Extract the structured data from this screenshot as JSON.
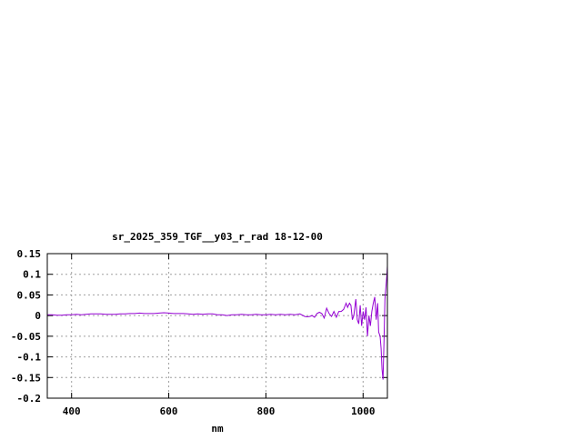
{
  "chart_data": {
    "type": "line",
    "title": "sr_2025_359_TGF__y03_r_rad 18-12-00",
    "xlabel": "nm",
    "ylabel": "",
    "xlim": [
      350,
      1050
    ],
    "ylim": [
      -0.2,
      0.15
    ],
    "xticks": [
      400,
      600,
      800,
      1000
    ],
    "xtick_labels": [
      "400",
      "600",
      "800",
      "1000"
    ],
    "yticks": [
      0.15,
      0.1,
      0.05,
      0,
      -0.05,
      -0.1,
      -0.15,
      -0.2
    ],
    "ytick_labels": [
      "0.15",
      "0.1",
      "0.05",
      "0",
      "-0.05",
      "-0.1",
      "-0.15",
      "-0.2"
    ],
    "grid": true,
    "line_color": "#9400d3",
    "series": [
      {
        "x": [
          350,
          360,
          370,
          380,
          390,
          400,
          410,
          420,
          430,
          440,
          450,
          460,
          470,
          480,
          490,
          500,
          510,
          520,
          530,
          540,
          550,
          560,
          570,
          580,
          590,
          600,
          610,
          620,
          630,
          640,
          650,
          660,
          670,
          680,
          690,
          700,
          710,
          720,
          730,
          740,
          750,
          760,
          770,
          780,
          790,
          800,
          810,
          820,
          830,
          840,
          850,
          860,
          870,
          880,
          885,
          890,
          895,
          900,
          905,
          910,
          915,
          920,
          925,
          930,
          935,
          940,
          945,
          950,
          955,
          960,
          965,
          968,
          972,
          975,
          978,
          981,
          985,
          988,
          991,
          994,
          997,
          1000,
          1003,
          1006,
          1009,
          1012,
          1015,
          1018,
          1021,
          1024,
          1027,
          1030,
          1032,
          1035,
          1037,
          1039,
          1041,
          1043,
          1045,
          1047,
          1049,
          1050
        ],
        "y": [
          0.002,
          0.002,
          0.001,
          0.001,
          0.002,
          0.002,
          0.003,
          0.002,
          0.003,
          0.004,
          0.004,
          0.004,
          0.003,
          0.003,
          0.003,
          0.004,
          0.004,
          0.005,
          0.005,
          0.006,
          0.005,
          0.005,
          0.005,
          0.006,
          0.007,
          0.006,
          0.005,
          0.005,
          0.005,
          0.004,
          0.003,
          0.004,
          0.003,
          0.004,
          0.004,
          0.002,
          0.002,
          0.0,
          0.002,
          0.002,
          0.003,
          0.002,
          0.002,
          0.003,
          0.002,
          0.002,
          0.003,
          0.002,
          0.003,
          0.002,
          0.003,
          0.002,
          0.004,
          -0.002,
          -0.003,
          -0.002,
          0.0,
          -0.004,
          0.005,
          0.008,
          0.005,
          -0.006,
          0.018,
          0.005,
          -0.002,
          0.01,
          -0.004,
          0.01,
          0.01,
          0.015,
          0.03,
          0.02,
          0.03,
          0.025,
          -0.01,
          0.0,
          0.04,
          -0.01,
          -0.02,
          0.025,
          -0.025,
          0.01,
          -0.01,
          0.02,
          -0.05,
          0.0,
          -0.025,
          0.01,
          0.03,
          0.045,
          -0.01,
          0.03,
          -0.04,
          -0.05,
          -0.08,
          -0.13,
          -0.155,
          -0.06,
          0.04,
          0.07,
          0.1,
          0.12
        ]
      }
    ]
  }
}
